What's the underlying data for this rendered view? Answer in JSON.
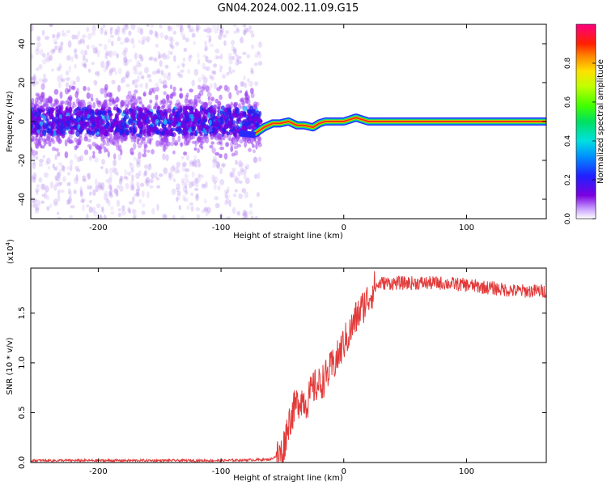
{
  "title": "GN04.2024.002.11.09.G15",
  "colors": {
    "snr_line": "#e23a3a",
    "spectral_core": "#ff2a1a",
    "scatter": "#7a00e0"
  },
  "chart_data": [
    {
      "type": "heatmap",
      "xlabel": "Height of straight line (km)",
      "ylabel": "Frequency (Hz)",
      "xlim": [
        -255,
        165
      ],
      "ylim": [
        -50,
        50
      ],
      "x_ticks": [
        -200,
        -100,
        0,
        100
      ],
      "y_ticks": [
        -40,
        -20,
        0,
        20,
        40
      ],
      "colorbar": {
        "label": "Normalized spectral amplitude",
        "range": [
          0,
          1
        ],
        "ticks": [
          "0.0",
          "0.2",
          "0.4",
          "0.6",
          "0.8"
        ],
        "colormap": "rainbow (white-purple-blue-cyan-green-yellow-red-magenta)"
      },
      "ridge": {
        "x": [
          -72,
          -65,
          -58,
          -52,
          -45,
          -38,
          -32,
          -25,
          -20,
          -15,
          -10,
          -5,
          0,
          5,
          10,
          15,
          20,
          30,
          50,
          100,
          165
        ],
        "freq_hz": [
          -6,
          -3,
          -1,
          -1,
          0,
          -2,
          -2,
          -3,
          -1,
          0,
          0,
          0,
          0,
          1,
          2,
          1,
          0,
          0,
          0,
          0,
          0
        ]
      },
      "scatter_region_x": [
        -255,
        -68
      ]
    },
    {
      "type": "line",
      "xlabel": "Height of straight line (km)",
      "ylabel": "SNR (10 * v/v)",
      "y_multiplier": "(x10",
      "y_multiplier_exp": "4",
      "xlim": [
        -255,
        165
      ],
      "ylim": [
        0,
        1.95
      ],
      "x_ticks": [
        -200,
        -100,
        0,
        100
      ],
      "y_ticks": [
        "0.0",
        "0.5",
        "1.0",
        "1.5"
      ],
      "y_tick_values": [
        0,
        0.5,
        1.0,
        1.5
      ],
      "series": [
        {
          "x": [
            -255,
            -200,
            -150,
            -100,
            -60,
            -50,
            -45,
            -40,
            -35,
            -30,
            -25,
            -20,
            -15,
            -10,
            -5,
            0,
            5,
            10,
            15,
            20,
            25,
            30,
            40,
            60,
            80,
            100,
            120,
            140,
            165
          ],
          "values": [
            0.02,
            0.02,
            0.02,
            0.02,
            0.03,
            0.1,
            0.4,
            0.55,
            0.65,
            0.6,
            0.75,
            0.78,
            0.85,
            0.95,
            1.05,
            1.2,
            1.3,
            1.45,
            1.55,
            1.65,
            1.75,
            1.8,
            1.8,
            1.8,
            1.8,
            1.78,
            1.75,
            1.72,
            1.72
          ]
        }
      ]
    }
  ]
}
